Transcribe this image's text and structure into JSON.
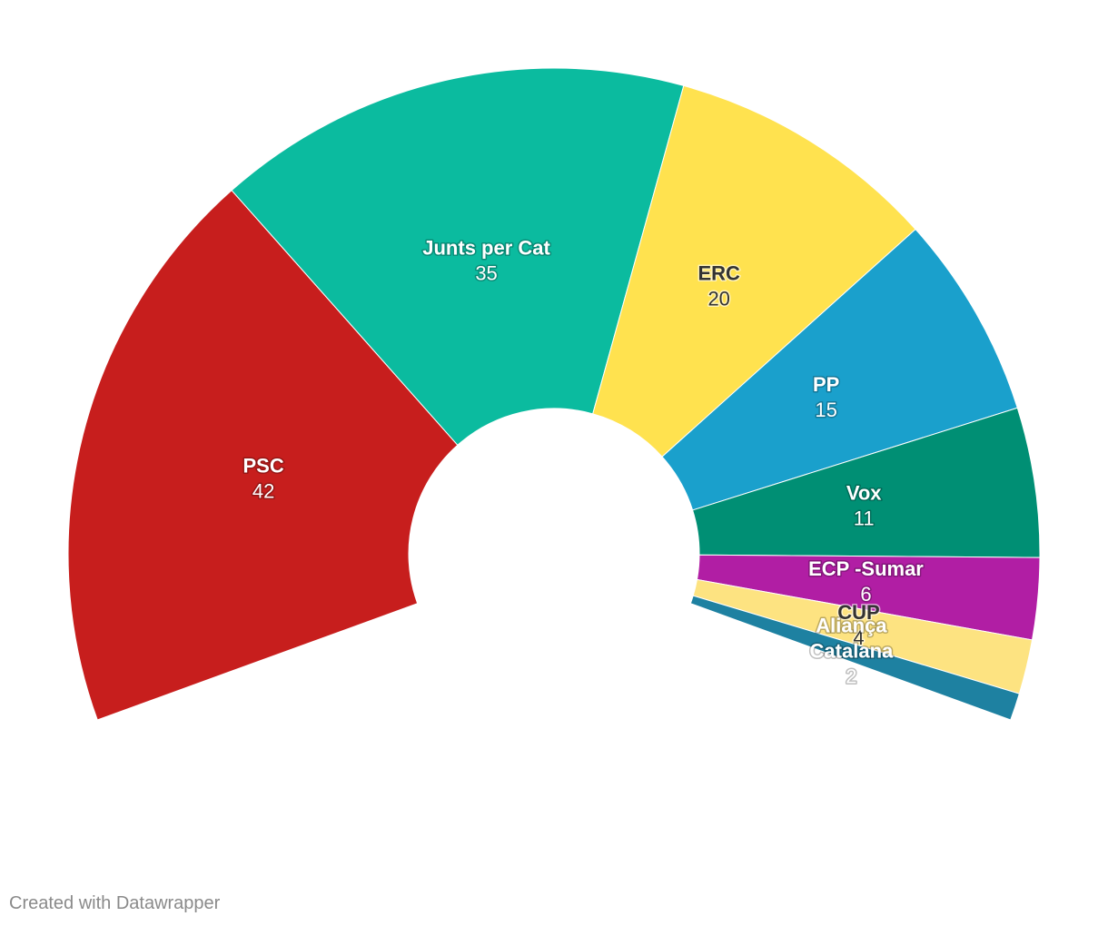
{
  "chart_data": {
    "type": "pie",
    "subtype": "parliament-half-donut",
    "title": "",
    "categories": [
      "PSC",
      "Junts per Cat",
      "ERC",
      "PP",
      "Vox",
      "ECP -Sumar",
      "CUP",
      "Aliança Catalana"
    ],
    "values": [
      42,
      35,
      20,
      15,
      11,
      6,
      4,
      2
    ],
    "colors": [
      "#c71e1d",
      "#0bbb9f",
      "#ffe24f",
      "#1aa0cc",
      "#008f74",
      "#b11ea4",
      "#fde381",
      "#1e81a1"
    ],
    "label_colors": [
      "#ffffff",
      "#ffffff",
      "#333333",
      "#ffffff",
      "#ffffff",
      "#ffffff",
      "#333333",
      "#ffffff"
    ],
    "total": 135,
    "arc_degrees": 220
  },
  "footer": {
    "credit": "Created with Datawrapper"
  }
}
